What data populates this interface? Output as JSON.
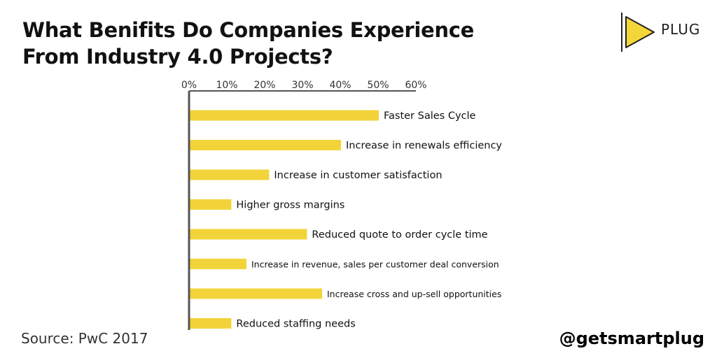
{
  "header": {
    "title_line1": "What Benifits Do Companies Experience",
    "title_line2": "From Industry 4.0 Projects?"
  },
  "logo": {
    "text": "PLUG",
    "accent": "#f5d63a"
  },
  "footer": {
    "source": "Source: PwC 2017",
    "handle": "@getsmartplug"
  },
  "colors": {
    "bar": "#f2d43a",
    "axis": "#555555"
  },
  "chart_data": {
    "type": "bar",
    "orientation": "horizontal",
    "xlim": [
      0,
      60
    ],
    "xticks": [
      "0%",
      "10%",
      "20%",
      "30%",
      "40%",
      "50%",
      "60%"
    ],
    "categories": [
      "Faster Sales Cycle",
      "Increase in renewals efficiency",
      "Increase in customer satisfaction",
      "Higher gross margins",
      "Reduced quote to order cycle time",
      "Increase in revenue, sales per customer deal conversion",
      "Increase cross and up-sell  opportunities",
      "Reduced staffing needs"
    ],
    "values": [
      50,
      40,
      21,
      11,
      31,
      15,
      35,
      11
    ],
    "grid": false,
    "legend": "none"
  }
}
